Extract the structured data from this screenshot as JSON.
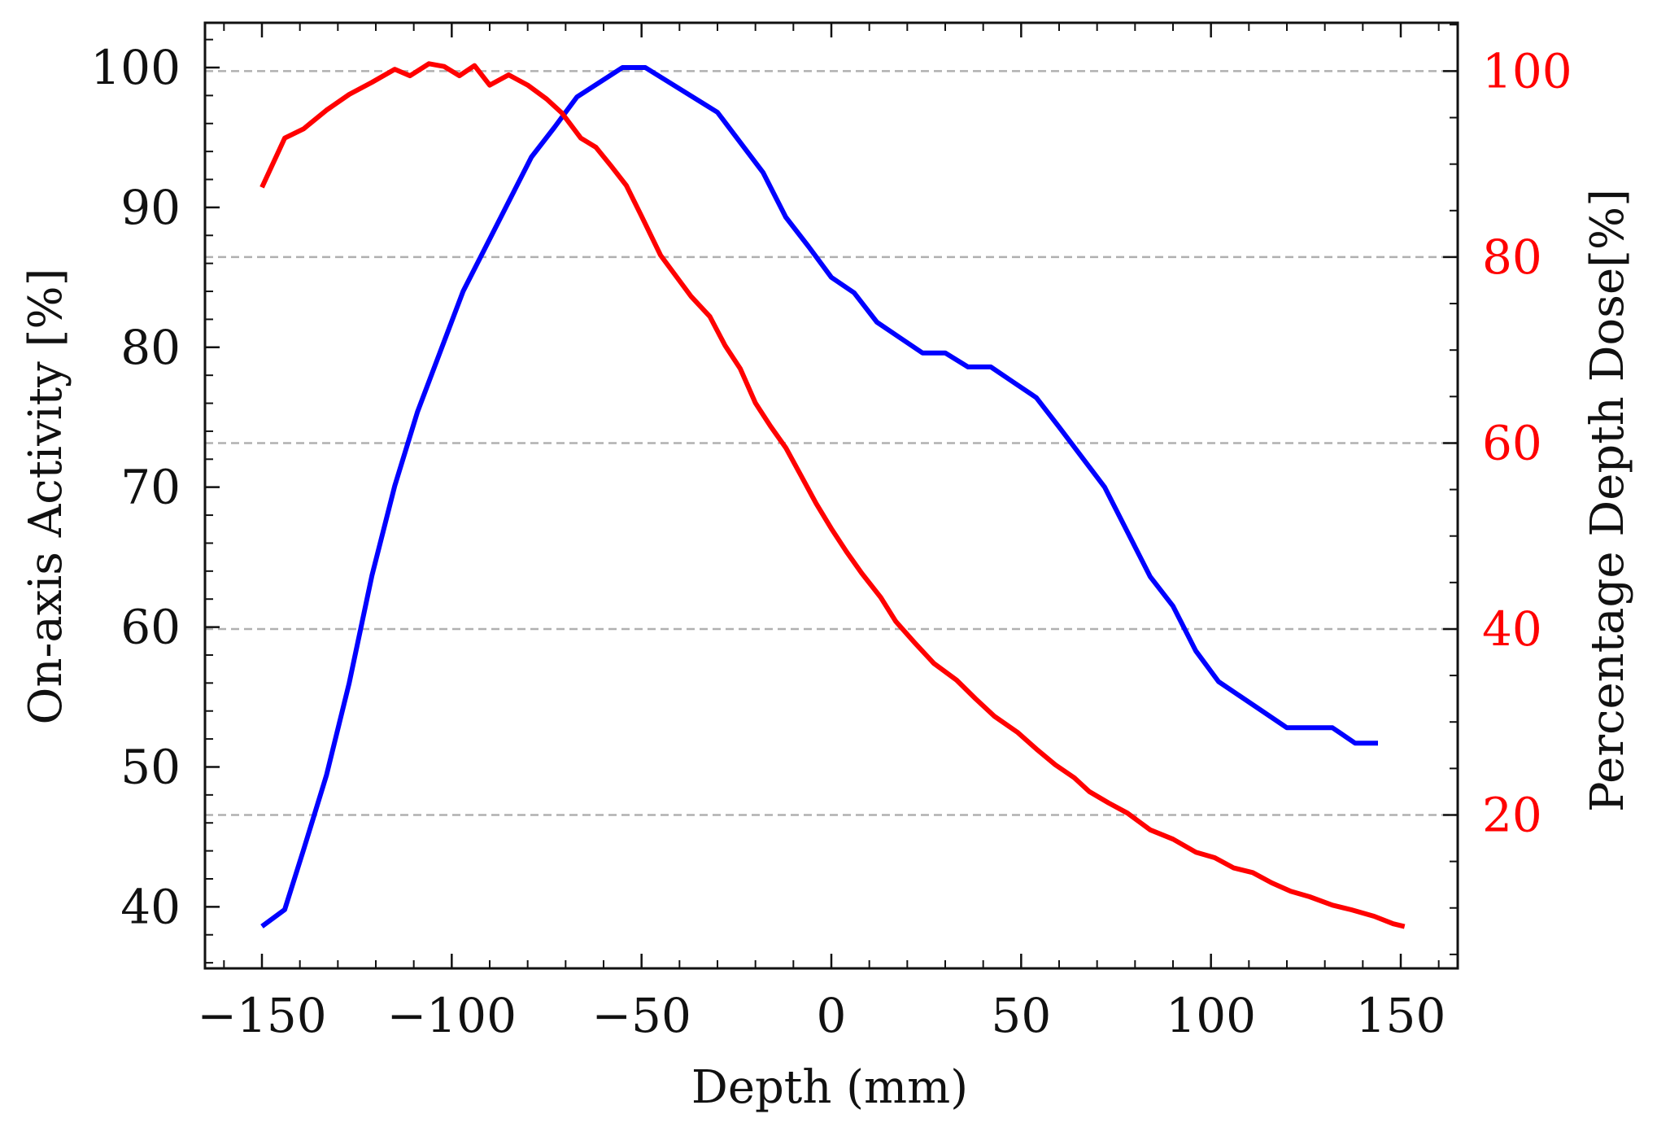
{
  "chart_data": {
    "type": "line",
    "title": "",
    "xlabel": "Depth (mm)",
    "ylabel_left": "On-axis Activity [%]",
    "ylabel_right": "Percentage Depth Dose[%]",
    "xlim": [
      -165,
      165
    ],
    "ylim_left": [
      35.6,
      103.2
    ],
    "ylim_right": [
      3.5,
      105.2
    ],
    "x_ticks": [
      -150,
      -100,
      -50,
      0,
      50,
      100,
      150
    ],
    "x_tick_labels": [
      "−150",
      "−100",
      "−50",
      "0",
      "50",
      "100",
      "150"
    ],
    "y_left_ticks": [
      40,
      50,
      60,
      70,
      80,
      90,
      100
    ],
    "y_left_tick_labels": [
      "40",
      "50",
      "60",
      "70",
      "80",
      "90",
      "100"
    ],
    "y_right_ticks": [
      20,
      40,
      60,
      80,
      100
    ],
    "y_right_tick_labels": [
      "20",
      "40",
      "60",
      "80",
      "100"
    ],
    "grid": "horizontal dashed at right-axis major ticks",
    "colors": {
      "activity": "#0000ff",
      "dose": "#ff0000",
      "grid": "#b0b0b0",
      "axis": "#111111"
    },
    "series": [
      {
        "name": "On-axis Activity",
        "axis": "left",
        "color": "#0000ff",
        "x": [
          -150,
          -144,
          -139,
          -133,
          -127,
          -121,
          -115,
          -109,
          -103,
          -97,
          -91,
          -85,
          -79,
          -73,
          -67,
          -55,
          -49,
          -30,
          -18,
          -12,
          -6,
          0,
          6,
          12,
          18,
          24,
          30,
          36,
          42,
          48,
          54,
          60,
          72,
          78,
          84,
          90,
          96,
          102,
          108,
          114,
          120,
          132,
          138,
          144
        ],
        "values": [
          38.6,
          39.8,
          44.1,
          49.4,
          56.0,
          63.7,
          70.1,
          75.4,
          79.7,
          84.0,
          87.2,
          90.4,
          93.6,
          95.7,
          97.9,
          100.0,
          100.0,
          96.8,
          92.5,
          89.3,
          87.2,
          85.0,
          83.9,
          81.8,
          80.7,
          79.6,
          79.6,
          78.6,
          78.6,
          77.5,
          76.4,
          74.3,
          70.0,
          66.8,
          63.6,
          61.5,
          58.3,
          56.1,
          55.0,
          53.9,
          52.8,
          52.8,
          51.7,
          51.7
        ]
      },
      {
        "name": "Percentage Depth Dose",
        "axis": "right",
        "color": "#ff0000",
        "x": [
          -150,
          -144,
          -139,
          -133,
          -127,
          -121,
          -115,
          -111,
          -106,
          -102,
          -98,
          -94,
          -90,
          -85,
          -80,
          -75,
          -71,
          -66,
          -62,
          -58,
          -54,
          -50,
          -45,
          -37,
          -32,
          -28,
          -24,
          -20,
          -16,
          -12,
          -8,
          -4,
          0,
          4,
          8,
          13,
          17,
          22,
          27,
          33,
          38,
          43,
          49,
          54,
          59,
          64,
          68,
          73,
          78,
          84,
          90,
          96,
          101,
          106,
          111,
          116,
          121,
          126,
          132,
          137,
          143,
          148,
          151
        ],
        "values": [
          87.5,
          92.8,
          93.8,
          95.8,
          97.5,
          98.8,
          100.2,
          99.5,
          100.8,
          100.5,
          99.5,
          100.6,
          98.5,
          99.6,
          98.5,
          97.0,
          95.5,
          92.8,
          91.8,
          89.8,
          87.7,
          84.4,
          80.2,
          75.8,
          73.6,
          70.5,
          68.0,
          64.3,
          61.8,
          59.5,
          56.5,
          53.5,
          50.8,
          48.3,
          46.0,
          43.4,
          40.8,
          38.5,
          36.3,
          34.5,
          32.5,
          30.6,
          28.9,
          27.1,
          25.4,
          24.0,
          22.5,
          21.3,
          20.2,
          18.4,
          17.4,
          16.0,
          15.4,
          14.3,
          13.8,
          12.7,
          11.8,
          11.2,
          10.3,
          9.8,
          9.1,
          8.3,
          8.0
        ]
      }
    ]
  }
}
